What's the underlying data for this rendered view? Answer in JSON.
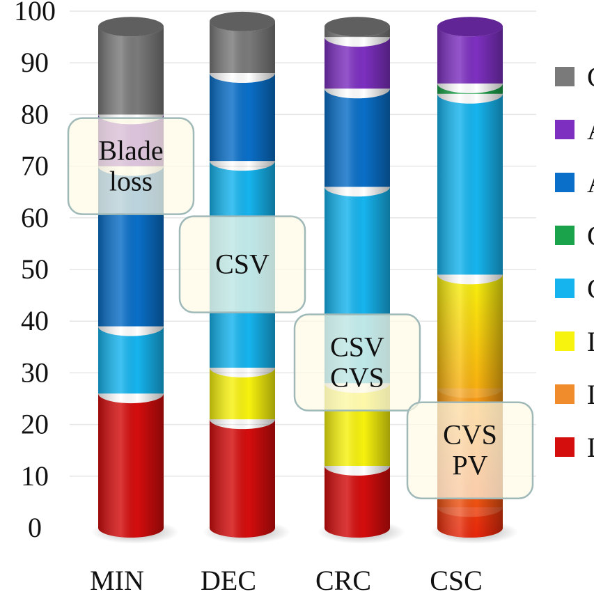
{
  "chart_data": {
    "type": "bar",
    "stacked": true,
    "style": "3d-cylinder",
    "categories": [
      "MIN",
      "DEC",
      "CRC",
      "CSC"
    ],
    "ylim": [
      0,
      100
    ],
    "yticks": [
      "0",
      "10",
      "20",
      "30",
      "40",
      "50",
      "60",
      "70",
      "80",
      "90",
      "100"
    ],
    "ylabel": "",
    "xlabel": "",
    "grid": true,
    "legend_position": "right",
    "series": [
      {
        "color": "#d40d0d",
        "values": [
          26,
          21,
          12,
          4
        ]
      },
      {
        "color": "#f08c2c",
        "values": [
          0,
          0,
          0,
          23
        ]
      },
      {
        "color": "#f7f20e",
        "values": [
          0,
          10,
          16,
          22
        ]
      },
      {
        "color": "#16b4ee",
        "values": [
          13,
          40,
          38,
          35
        ]
      },
      {
        "color": "#1aa34a",
        "values": [
          0,
          0,
          0,
          2
        ]
      },
      {
        "color": "#0a6fc8",
        "values": [
          31,
          17,
          19,
          0
        ]
      },
      {
        "color": "#7d30c0",
        "values": [
          10,
          0,
          10,
          11
        ]
      },
      {
        "color": "#7a7a7a",
        "values": [
          17,
          10,
          2,
          0
        ]
      }
    ],
    "legend_entries": [
      "C",
      "A",
      "A",
      "C",
      "C",
      "L",
      "L",
      "L"
    ],
    "annotations": [
      {
        "lines": [
          "Blade",
          "loss"
        ],
        "category": "MIN",
        "y": 70
      },
      {
        "lines": [
          "CSV"
        ],
        "category": "DEC",
        "y": 51
      },
      {
        "lines": [
          "CSV",
          "CVS"
        ],
        "category": "CRC",
        "y": 32
      },
      {
        "lines": [
          "CVS",
          "PV"
        ],
        "category": "CSC",
        "y": 15
      }
    ]
  }
}
